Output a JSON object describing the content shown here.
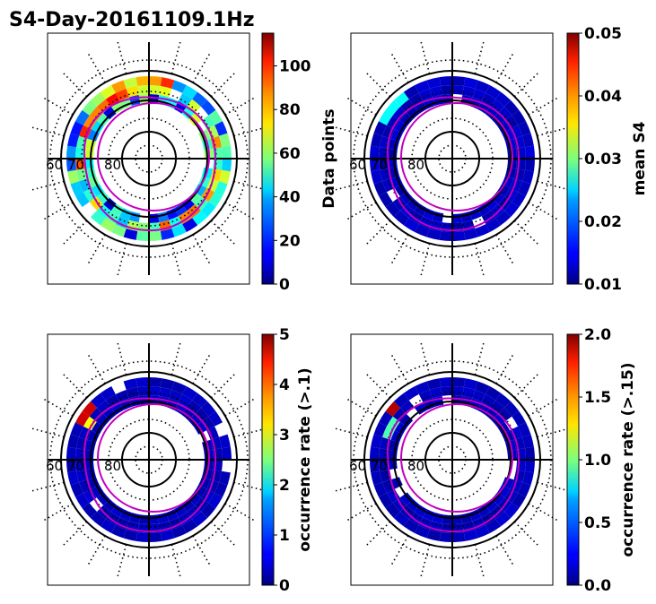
{
  "title": "S4-Day-20161109.1Hz",
  "colors": {
    "ring_line": "#000000",
    "oval_line": "#c000c0",
    "frame": "#000000"
  },
  "chart_data": [
    {
      "type": "heatmap",
      "projection": "polar",
      "lat_labels": [
        "60",
        "70",
        "80"
      ],
      "colorbar": {
        "label": "Data points",
        "range": [
          0,
          115
        ],
        "ticks": [
          "0",
          "20",
          "40",
          "60",
          "80",
          "100"
        ],
        "tick_values": [
          0,
          20,
          40,
          60,
          80,
          100
        ]
      },
      "profile": "counts"
    },
    {
      "type": "heatmap",
      "projection": "polar",
      "lat_labels": [
        "60",
        "70",
        "80"
      ],
      "colorbar": {
        "label": "mean S4",
        "range": [
          0.01,
          0.05
        ],
        "ticks": [
          "0.01",
          "0.02",
          "0.03",
          "0.04",
          "0.05"
        ],
        "tick_values": [
          0.01,
          0.02,
          0.03,
          0.04,
          0.05
        ]
      },
      "profile": "mean"
    },
    {
      "type": "heatmap",
      "projection": "polar",
      "lat_labels": [
        "60",
        "70",
        "80"
      ],
      "colorbar": {
        "label": "occurrence rate (>.1)",
        "range": [
          0,
          5
        ],
        "ticks": [
          "0",
          "1",
          "2",
          "3",
          "4",
          "5"
        ],
        "tick_values": [
          0,
          1,
          2,
          3,
          4,
          5
        ]
      },
      "profile": "occ"
    },
    {
      "type": "heatmap",
      "projection": "polar",
      "lat_labels": [
        "60",
        "70",
        "80"
      ],
      "colorbar": {
        "label": "occurrence rate (>.15)",
        "range": [
          0,
          2
        ],
        "ticks": [
          "0.0",
          "0.5",
          "1.0",
          "1.5",
          "2.0"
        ],
        "tick_values": [
          0,
          0.5,
          1,
          1.5,
          2
        ]
      },
      "profile": "occ2"
    }
  ]
}
